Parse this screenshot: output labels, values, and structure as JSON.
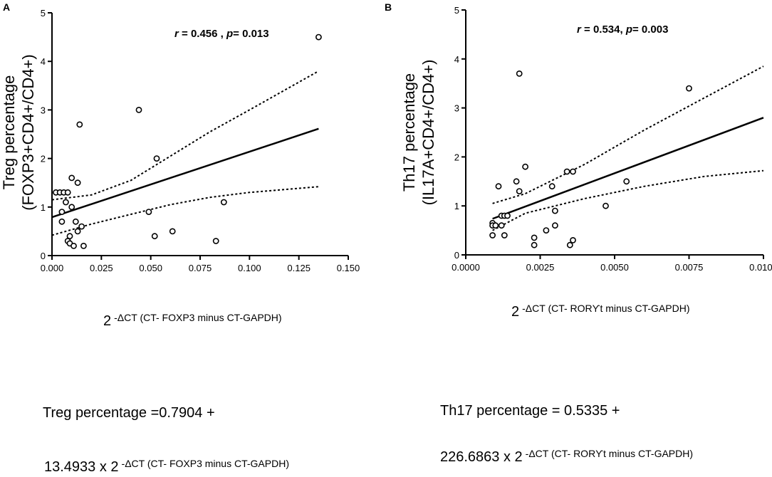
{
  "figure": {
    "panel_a_label": "A",
    "panel_b_label": "B",
    "equation_a": {
      "line1": "Treg percentage =0.7904 +",
      "line2_coef": "13.4933 x 2",
      "line2_sup": "-ΔCT (CT- FOXP3 minus CT-GAPDH)"
    },
    "equation_b": {
      "line1": "Th17 percentage = 0.5335 +",
      "line2_coef": "226.6863 x 2",
      "line2_sup": "-ΔCT (CT- RORϒt  minus CT-GAPDH)"
    }
  },
  "chart_data": [
    {
      "type": "scatter",
      "panel": "A",
      "ylabel_line1": "Treg percentage",
      "ylabel_line2": "(FOXP3+CD4+/CD4+)",
      "xlabel_base": "2",
      "xlabel_sup": "-ΔCT (CT- FOXP3 minus CT-GAPDH)",
      "annotation": {
        "r_label": "r",
        "r_value": " = 0.456 , ",
        "p_label": "p",
        "p_value": "= 0.013"
      },
      "xlim": [
        0,
        0.15
      ],
      "ylim": [
        0,
        5
      ],
      "xticks": [
        "0.000",
        "0.025",
        "0.050",
        "0.075",
        "0.100",
        "0.125",
        "0.150"
      ],
      "xtick_values": [
        0,
        0.025,
        0.05,
        0.075,
        0.1,
        0.125,
        0.15
      ],
      "yticks": [
        "0",
        "1",
        "2",
        "3",
        "4",
        "5"
      ],
      "ytick_values": [
        0,
        1,
        2,
        3,
        4,
        5
      ],
      "points": [
        [
          0.002,
          1.3
        ],
        [
          0.004,
          1.3
        ],
        [
          0.005,
          0.9
        ],
        [
          0.006,
          1.3
        ],
        [
          0.007,
          1.1
        ],
        [
          0.008,
          1.3
        ],
        [
          0.008,
          0.3
        ],
        [
          0.009,
          0.4
        ],
        [
          0.009,
          0.25
        ],
        [
          0.01,
          1.6
        ],
        [
          0.01,
          1.0
        ],
        [
          0.011,
          0.2
        ],
        [
          0.012,
          0.7
        ],
        [
          0.013,
          0.5
        ],
        [
          0.013,
          1.5
        ],
        [
          0.014,
          2.7
        ],
        [
          0.015,
          0.6
        ],
        [
          0.016,
          0.2
        ],
        [
          0.005,
          0.7
        ],
        [
          0.044,
          3.0
        ],
        [
          0.049,
          0.9
        ],
        [
          0.052,
          0.4
        ],
        [
          0.053,
          2.0
        ],
        [
          0.061,
          0.5
        ],
        [
          0.083,
          0.3
        ],
        [
          0.087,
          1.1
        ],
        [
          0.135,
          4.5
        ]
      ],
      "fit": {
        "intercept": 0.7904,
        "slope": 13.4933,
        "x_range": [
          0,
          0.135
        ]
      },
      "ci_upper": [
        [
          0,
          1.15
        ],
        [
          0.02,
          1.25
        ],
        [
          0.04,
          1.55
        ],
        [
          0.06,
          2.05
        ],
        [
          0.08,
          2.55
        ],
        [
          0.1,
          3.0
        ],
        [
          0.135,
          3.8
        ]
      ],
      "ci_lower": [
        [
          0,
          0.42
        ],
        [
          0.02,
          0.65
        ],
        [
          0.04,
          0.85
        ],
        [
          0.06,
          1.05
        ],
        [
          0.08,
          1.2
        ],
        [
          0.1,
          1.3
        ],
        [
          0.135,
          1.42
        ]
      ]
    },
    {
      "type": "scatter",
      "panel": "B",
      "ylabel_line1": "Th17 percentage",
      "ylabel_line2": "(IL17A+CD4+/CD4+)",
      "xlabel_base": "2",
      "xlabel_sup": "-ΔCT (CT- RORϒt  minus CT-GAPDH)",
      "annotation": {
        "r_label": "r",
        "r_value": " = 0.534, ",
        "p_label": "p",
        "p_value": "= 0.003"
      },
      "xlim": [
        0,
        0.01
      ],
      "ylim": [
        0,
        5
      ],
      "xticks": [
        "0.0000",
        "0.0025",
        "0.0050",
        "0.0075",
        "0.0100"
      ],
      "xtick_values": [
        0,
        0.0025,
        0.005,
        0.0075,
        0.01
      ],
      "yticks": [
        "0",
        "1",
        "2",
        "3",
        "4",
        "5"
      ],
      "ytick_values": [
        0,
        1,
        2,
        3,
        4,
        5
      ],
      "points": [
        [
          0.0009,
          0.65
        ],
        [
          0.0009,
          0.6
        ],
        [
          0.0009,
          0.4
        ],
        [
          0.001,
          0.6
        ],
        [
          0.0011,
          1.4
        ],
        [
          0.0012,
          0.8
        ],
        [
          0.0012,
          0.6
        ],
        [
          0.0013,
          0.8
        ],
        [
          0.0013,
          0.4
        ],
        [
          0.0014,
          0.8
        ],
        [
          0.0017,
          1.5
        ],
        [
          0.0018,
          1.3
        ],
        [
          0.0018,
          3.7
        ],
        [
          0.002,
          1.8
        ],
        [
          0.0023,
          0.35
        ],
        [
          0.0023,
          0.2
        ],
        [
          0.0027,
          0.5
        ],
        [
          0.0029,
          1.4
        ],
        [
          0.003,
          0.6
        ],
        [
          0.003,
          0.9
        ],
        [
          0.0034,
          1.7
        ],
        [
          0.0035,
          0.2
        ],
        [
          0.0036,
          1.7
        ],
        [
          0.0036,
          0.3
        ],
        [
          0.0047,
          1.0
        ],
        [
          0.0054,
          1.5
        ],
        [
          0.0075,
          3.4
        ]
      ],
      "fit": {
        "intercept": 0.5335,
        "slope": 226.6863,
        "x_range": [
          0.0009,
          0.01
        ]
      },
      "ci_upper": [
        [
          0.0009,
          1.05
        ],
        [
          0.002,
          1.25
        ],
        [
          0.004,
          1.85
        ],
        [
          0.006,
          2.55
        ],
        [
          0.008,
          3.2
        ],
        [
          0.01,
          3.85
        ]
      ],
      "ci_lower": [
        [
          0.0009,
          0.5
        ],
        [
          0.002,
          0.85
        ],
        [
          0.004,
          1.15
        ],
        [
          0.006,
          1.4
        ],
        [
          0.008,
          1.6
        ],
        [
          0.01,
          1.72
        ]
      ]
    }
  ]
}
